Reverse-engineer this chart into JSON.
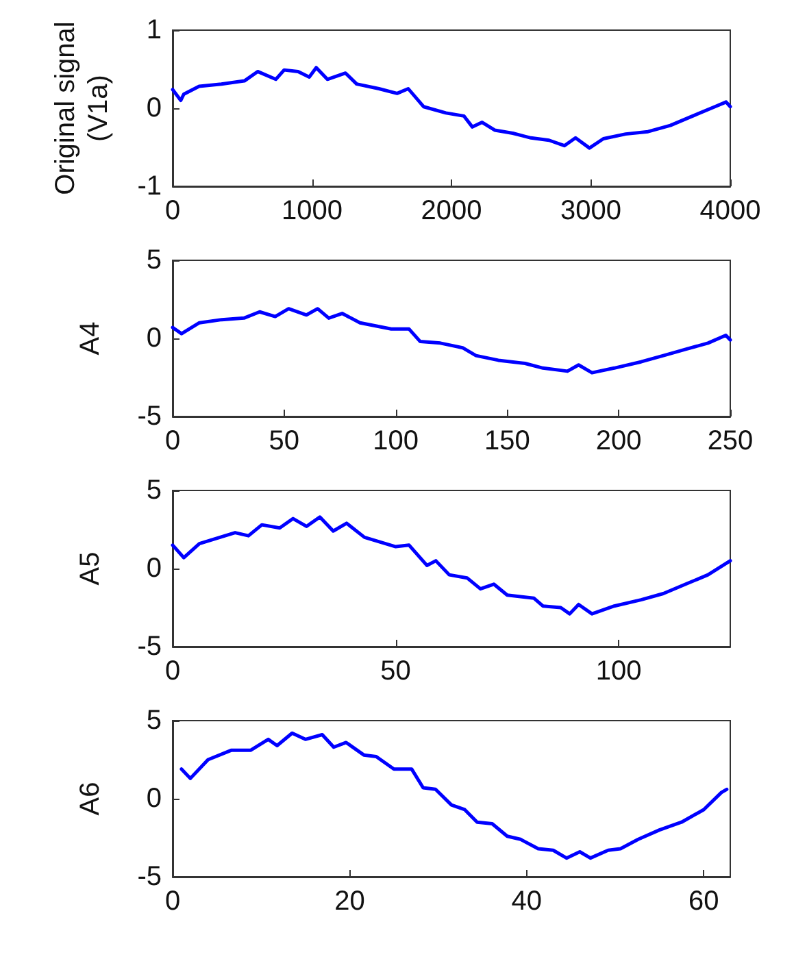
{
  "chart_data": [
    {
      "type": "line",
      "ylabel": "Original signal\n(V1a)",
      "xlim": [
        0,
        4000
      ],
      "xticks": [
        0,
        1000,
        2000,
        3000,
        4000
      ],
      "ylim": [
        -1,
        1
      ],
      "yticks": [
        -1,
        0,
        1
      ],
      "grid": false,
      "marker": "none",
      "line_style": "solid",
      "series": [
        {
          "color": "#0000ff",
          "x": [
            0,
            58,
            80,
            190,
            350,
            515,
            610,
            740,
            800,
            900,
            980,
            1030,
            1110,
            1240,
            1320,
            1480,
            1610,
            1690,
            1800,
            1960,
            2090,
            2150,
            2220,
            2310,
            2440,
            2570,
            2700,
            2810,
            2890,
            2990,
            3090,
            3250,
            3410,
            3570,
            3730,
            3890,
            3970,
            4000
          ],
          "values": [
            0.24,
            0.1,
            0.18,
            0.28,
            0.31,
            0.35,
            0.47,
            0.37,
            0.49,
            0.47,
            0.4,
            0.52,
            0.37,
            0.45,
            0.31,
            0.25,
            0.19,
            0.25,
            0.02,
            -0.06,
            -0.1,
            -0.24,
            -0.18,
            -0.28,
            -0.32,
            -0.38,
            -0.41,
            -0.48,
            -0.38,
            -0.51,
            -0.39,
            -0.33,
            -0.3,
            -0.22,
            -0.1,
            0.02,
            0.08,
            0.02
          ]
        }
      ]
    },
    {
      "type": "line",
      "ylabel": "A4",
      "xlim": [
        0,
        250
      ],
      "xticks": [
        0,
        50,
        100,
        150,
        200,
        250
      ],
      "ylim": [
        -5,
        5
      ],
      "yticks": [
        -5,
        0,
        5
      ],
      "grid": false,
      "marker": "none",
      "line_style": "solid",
      "series": [
        {
          "color": "#0000ff",
          "x": [
            0,
            4,
            12,
            22,
            32,
            39,
            46,
            52,
            60,
            65,
            70,
            76,
            84,
            98,
            106,
            111,
            120,
            130,
            136,
            146,
            158,
            166,
            177,
            182,
            188,
            198,
            210,
            220,
            230,
            240,
            248,
            250
          ],
          "values": [
            0.7,
            0.3,
            1.0,
            1.2,
            1.3,
            1.7,
            1.4,
            1.9,
            1.5,
            1.9,
            1.3,
            1.6,
            1.0,
            0.6,
            0.6,
            -0.2,
            -0.3,
            -0.6,
            -1.1,
            -1.4,
            -1.6,
            -1.9,
            -2.1,
            -1.7,
            -2.2,
            -1.9,
            -1.5,
            -1.1,
            -0.7,
            -0.3,
            0.2,
            -0.1
          ]
        }
      ]
    },
    {
      "type": "line",
      "ylabel": "A5",
      "xlim": [
        0,
        125
      ],
      "xticks": [
        0,
        50,
        100
      ],
      "ylim": [
        -5,
        5
      ],
      "yticks": [
        -5,
        0,
        5
      ],
      "grid": false,
      "marker": "none",
      "line_style": "solid",
      "series": [
        {
          "color": "#0000ff",
          "x": [
            0,
            2.5,
            6,
            14,
            17,
            20,
            24,
            27,
            30,
            33,
            36,
            39,
            43,
            50,
            53,
            57,
            59,
            62,
            66,
            69,
            72,
            75,
            81,
            83,
            87,
            89,
            91,
            94,
            99,
            105,
            110,
            115,
            120,
            125
          ],
          "values": [
            1.5,
            0.7,
            1.6,
            2.3,
            2.1,
            2.8,
            2.6,
            3.2,
            2.7,
            3.3,
            2.4,
            2.9,
            2.0,
            1.4,
            1.5,
            0.2,
            0.5,
            -0.4,
            -0.6,
            -1.3,
            -1.0,
            -1.7,
            -1.9,
            -2.4,
            -2.5,
            -2.9,
            -2.3,
            -2.9,
            -2.4,
            -2.0,
            -1.6,
            -1.0,
            -0.4,
            0.5
          ]
        }
      ]
    },
    {
      "type": "line",
      "ylabel": "A6",
      "xlim": [
        0,
        63
      ],
      "xticks": [
        0,
        20,
        40,
        60
      ],
      "ylim": [
        -5,
        5
      ],
      "yticks": [
        -5,
        0,
        5
      ],
      "grid": false,
      "marker": "none",
      "line_style": "solid",
      "series": [
        {
          "color": "#0000ff",
          "x": [
            1,
            2,
            4,
            6.6,
            8.8,
            10.8,
            11.8,
            13.5,
            15,
            16.9,
            18.2,
            19.6,
            21.6,
            23,
            25,
            27,
            28.3,
            29.7,
            31.5,
            33,
            34.4,
            36.1,
            37.8,
            39.3,
            41.3,
            43,
            44.5,
            46,
            47.2,
            49.2,
            50.6,
            52.6,
            55,
            57.5,
            60,
            62,
            62.6
          ],
          "values": [
            1.9,
            1.3,
            2.5,
            3.1,
            3.1,
            3.8,
            3.4,
            4.2,
            3.8,
            4.1,
            3.3,
            3.6,
            2.8,
            2.7,
            1.9,
            1.9,
            0.7,
            0.6,
            -0.4,
            -0.7,
            -1.5,
            -1.6,
            -2.4,
            -2.6,
            -3.2,
            -3.3,
            -3.8,
            -3.4,
            -3.8,
            -3.3,
            -3.2,
            -2.6,
            -2.0,
            -1.5,
            -0.7,
            0.4,
            0.6
          ]
        }
      ]
    }
  ]
}
